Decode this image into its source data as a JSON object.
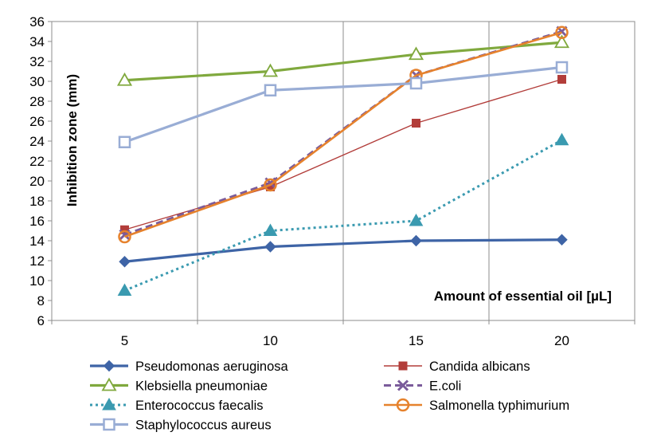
{
  "chart_data": {
    "type": "line",
    "title": "",
    "xlabel": "Amount of essential oil [µL]",
    "ylabel": "Inhibition zone (mm)",
    "x": [
      5,
      10,
      15,
      20
    ],
    "x_tick_labels": [
      "5",
      "10",
      "15",
      "20"
    ],
    "ylim": [
      6,
      36
    ],
    "y_ticks": [
      6,
      8,
      10,
      12,
      14,
      16,
      18,
      20,
      22,
      24,
      26,
      28,
      30,
      32,
      34,
      36
    ],
    "grid": "vertical",
    "legend_position": "bottom",
    "series": [
      {
        "name": "Pseudomonas aeruginosa",
        "values": [
          11.9,
          13.4,
          14.0,
          14.1
        ],
        "color": "#3e64a6",
        "marker": "diamond",
        "dash": "solid",
        "width": 3.2
      },
      {
        "name": "Candida albicans",
        "values": [
          15.1,
          19.4,
          25.8,
          30.2
        ],
        "color": "#b23d3a",
        "marker": "square",
        "dash": "solid",
        "width": 1.4
      },
      {
        "name": "Klebsiella pneumoniae",
        "values": [
          30.1,
          31.0,
          32.7,
          33.9
        ],
        "color": "#80a93e",
        "marker": "triangle-open",
        "dash": "solid",
        "width": 3.2
      },
      {
        "name": "E.coli",
        "values": [
          14.6,
          19.8,
          30.6,
          35.0
        ],
        "color": "#7b5c9b",
        "marker": "x",
        "dash": "dashed",
        "width": 3.0
      },
      {
        "name": "Enterococcus faecalis",
        "values": [
          9.0,
          15.0,
          16.0,
          24.1
        ],
        "color": "#3a9ab0",
        "marker": "triangle",
        "dash": "dotted",
        "width": 3.0
      },
      {
        "name": "Salmonella typhimurium",
        "values": [
          14.4,
          19.6,
          30.6,
          34.9
        ],
        "color": "#e6822d",
        "marker": "circle-open",
        "dash": "solid",
        "width": 2.6
      },
      {
        "name": "Staphylococcus aureus",
        "values": [
          23.9,
          29.1,
          29.8,
          31.4
        ],
        "color": "#99add5",
        "marker": "square-open",
        "dash": "solid",
        "width": 3.2
      }
    ]
  }
}
